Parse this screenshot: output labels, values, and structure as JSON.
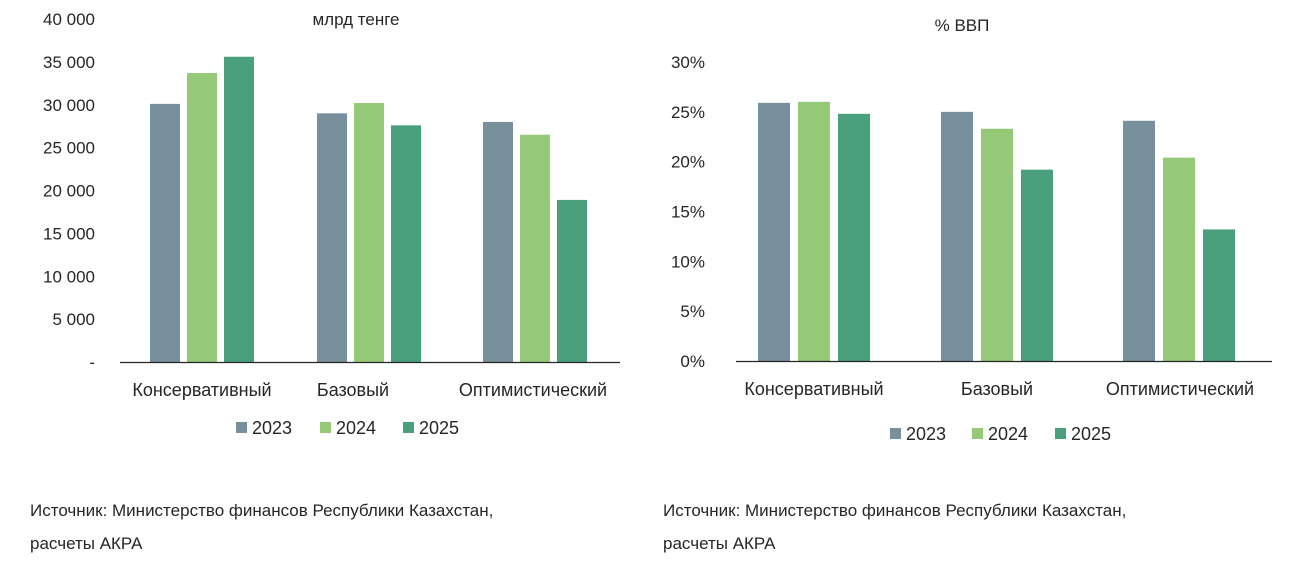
{
  "series_colors": [
    "#78909c",
    "#95c978",
    "#4aa07c"
  ],
  "chart_data": [
    {
      "type": "bar",
      "title": "млрд тенге",
      "categories": [
        "Консервативный",
        "Базовый",
        "Оптимистический"
      ],
      "series": [
        {
          "name": "2023",
          "values": [
            30100,
            29000,
            28000
          ]
        },
        {
          "name": "2024",
          "values": [
            33700,
            30200,
            26500
          ]
        },
        {
          "name": "2025",
          "values": [
            35600,
            27600,
            18900
          ]
        }
      ],
      "ylim": [
        0,
        40000
      ],
      "y_ticks": [
        "-",
        "5 000",
        "10 000",
        "15 000",
        "20 000",
        "25 000",
        "30 000",
        "35 000",
        "40 000"
      ],
      "grid": false,
      "legend": "bottom",
      "source": [
        "Источник: Министерство финансов Республики Казахстан,",
        "расчеты АКРА"
      ]
    },
    {
      "type": "bar",
      "title": "% ВВП",
      "categories": [
        "Консервативный",
        "Базовый",
        "Оптимистический"
      ],
      "series": [
        {
          "name": "2023",
          "values": [
            25.9,
            25.0,
            24.1
          ]
        },
        {
          "name": "2024",
          "values": [
            26.0,
            23.3,
            20.4
          ]
        },
        {
          "name": "2025",
          "values": [
            24.8,
            19.2,
            13.2
          ]
        }
      ],
      "ylim": [
        0,
        30
      ],
      "y_ticks": [
        "0%",
        "5%",
        "10%",
        "15%",
        "20%",
        "25%",
        "30%"
      ],
      "grid": false,
      "legend": "bottom",
      "source": [
        "Источник: Министерство финансов Республики Казахстан,",
        "расчеты АКРА"
      ]
    }
  ]
}
